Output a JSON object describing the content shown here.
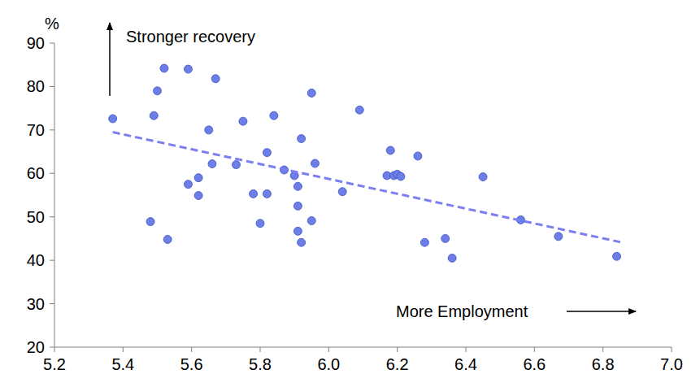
{
  "chart_data": {
    "type": "scatter",
    "ylabel": "%",
    "annotations": [
      "Stronger recovery",
      "More Employment"
    ],
    "xlim": [
      5.2,
      7.0
    ],
    "xticks": [
      5.2,
      5.4,
      5.6,
      5.8,
      {
        "value": 6,
        "label": "6.0"
      },
      6.2,
      6.4,
      6.6,
      6.8,
      {
        "value": 7,
        "label": "7.0"
      }
    ],
    "ylim": [
      20,
      90
    ],
    "yticks": [
      20,
      30,
      40,
      50,
      60,
      70,
      80,
      90
    ],
    "grid": false,
    "series": [
      {
        "type": "scatter",
        "marker": "circle",
        "color": "#6b7fe6",
        "x": [
          5.37,
          5.52,
          5.59,
          5.5,
          5.67,
          5.49,
          5.65,
          5.95,
          6.09,
          5.75,
          5.84,
          5.92,
          5.82,
          6.18,
          6.26,
          5.66,
          5.73,
          5.96,
          5.87,
          5.9,
          5.62,
          5.59,
          5.91,
          5.78,
          5.82,
          5.62,
          6.04,
          5.91,
          6.17,
          6.19,
          6.2,
          6.21,
          6.45,
          5.48,
          5.8,
          5.95,
          5.91,
          5.92,
          5.53,
          6.28,
          6.34,
          6.36,
          6.56,
          6.67,
          6.84
        ],
        "values": [
          72.6,
          84.2,
          84.0,
          79.0,
          81.8,
          73.3,
          70.0,
          78.5,
          74.6,
          72.0,
          73.3,
          68.0,
          64.8,
          65.3,
          64.0,
          62.2,
          62.0,
          62.3,
          60.8,
          59.5,
          59.0,
          57.5,
          57.0,
          55.3,
          55.3,
          54.9,
          55.8,
          52.5,
          59.5,
          59.5,
          59.8,
          59.3,
          59.2,
          48.9,
          48.5,
          49.1,
          46.7,
          44.1,
          44.8,
          44.1,
          45.0,
          40.5,
          49.3,
          45.5,
          40.9
        ]
      },
      {
        "type": "line",
        "line_style": "dashed",
        "color": "#7b7ff0",
        "x": [
          5.37,
          6.85
        ],
        "values": [
          69.5,
          44.2
        ]
      }
    ]
  }
}
